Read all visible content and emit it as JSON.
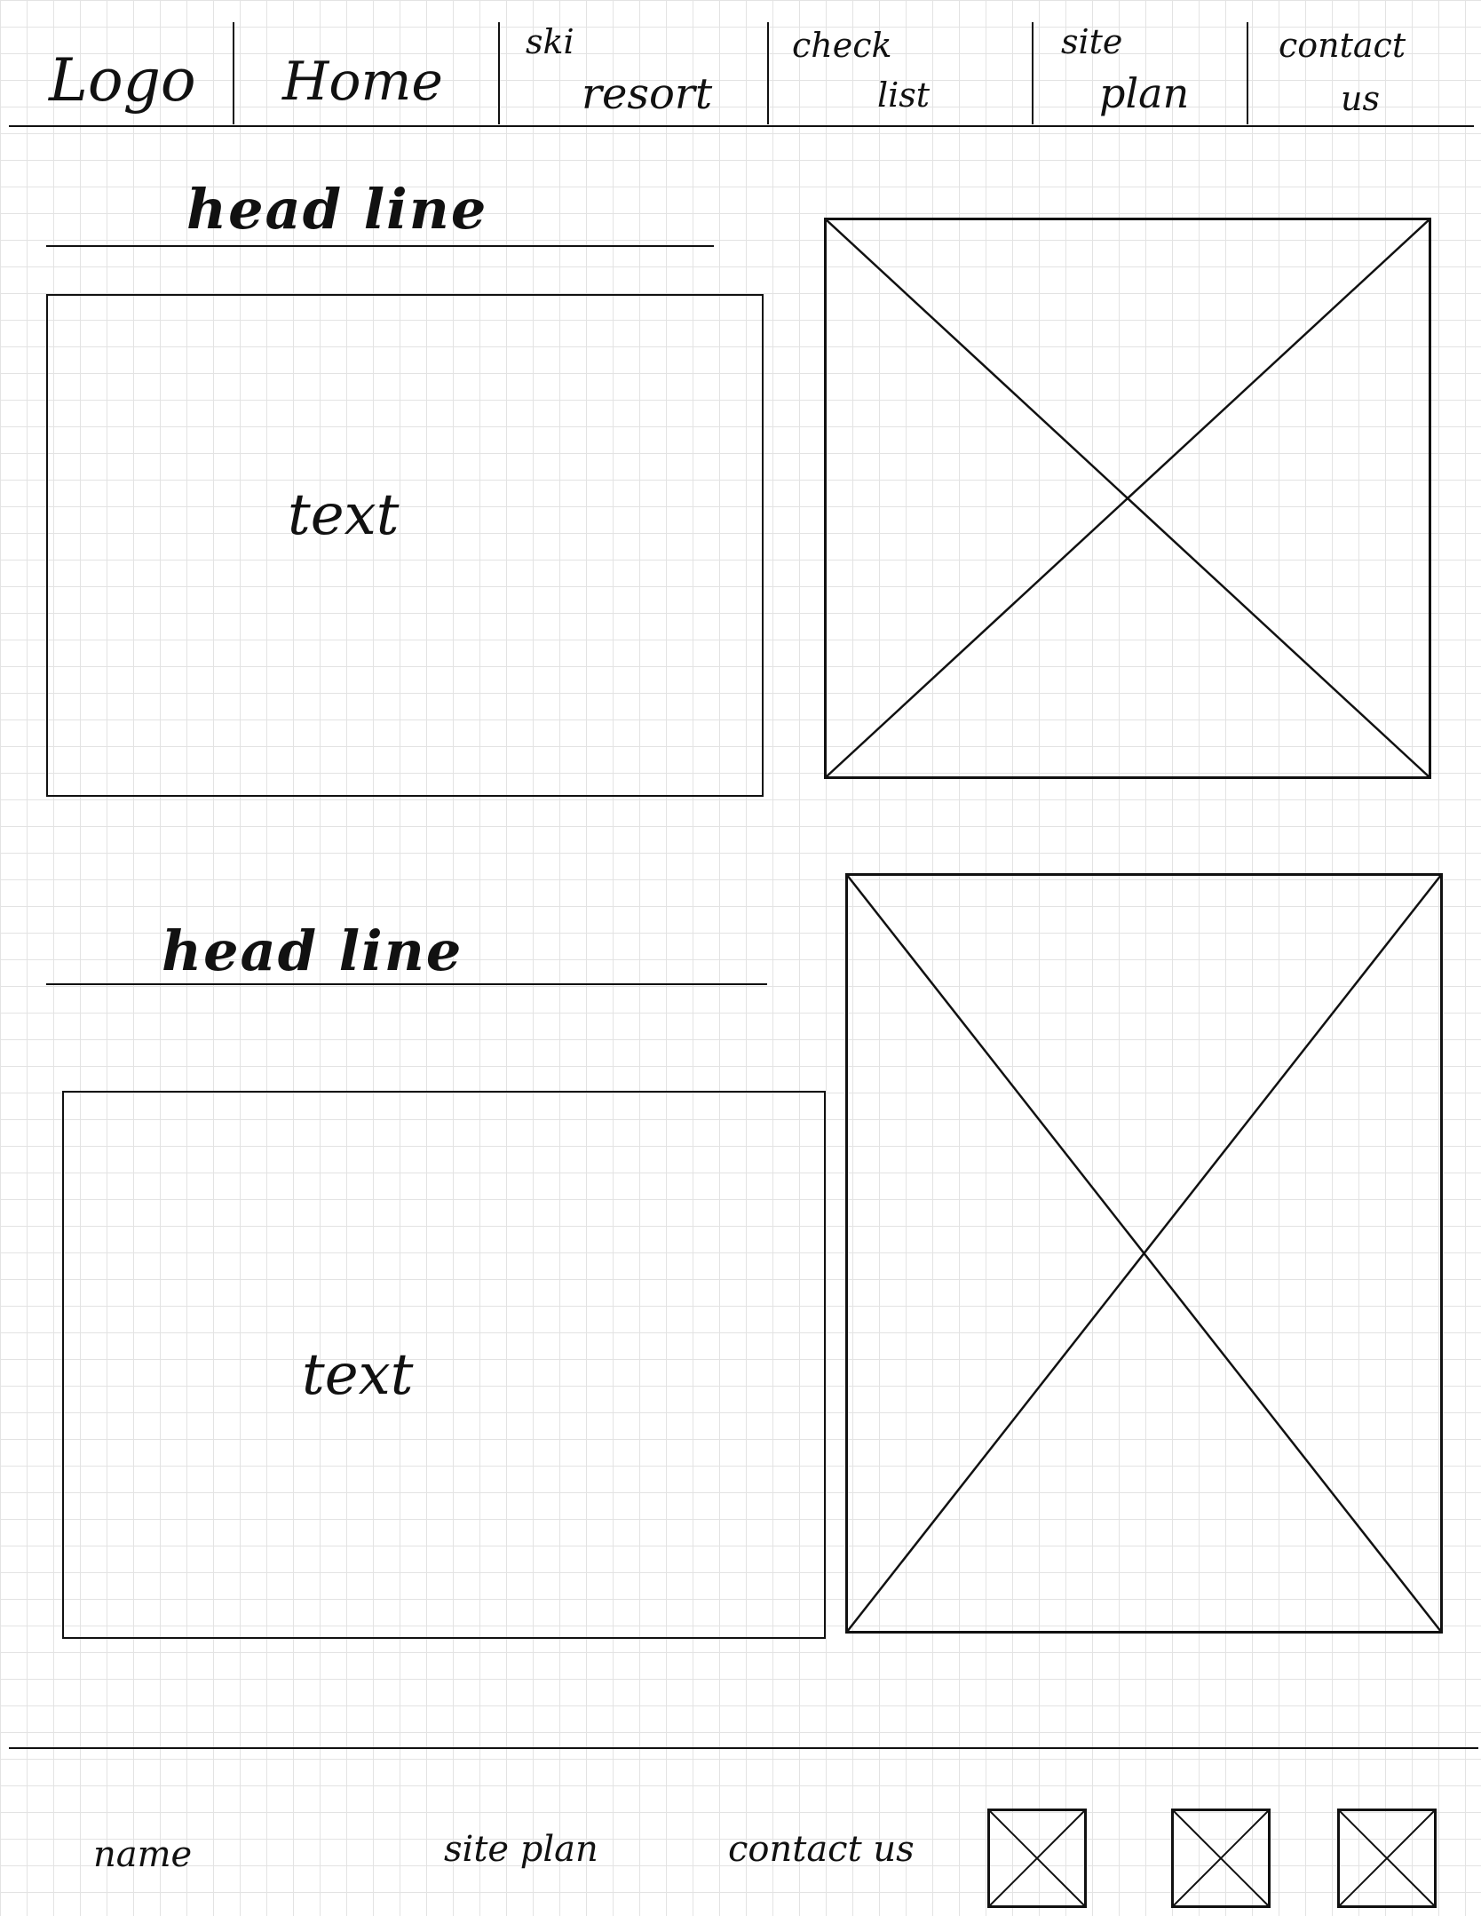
{
  "header": {
    "logo": "Logo",
    "nav": [
      {
        "line1": "Home",
        "line2": ""
      },
      {
        "line1": "ski",
        "line2": "resort"
      },
      {
        "line1": "check",
        "line2": "list"
      },
      {
        "line1": "site",
        "line2": "plan"
      },
      {
        "line1": "contact",
        "line2": "us"
      }
    ]
  },
  "sections": [
    {
      "headline": "head  line",
      "text": "text"
    },
    {
      "headline": "head  line",
      "text": "text"
    }
  ],
  "footer": {
    "name": "name",
    "site_plan": "site plan",
    "contact_us": "contact us"
  },
  "colors": {
    "ink": "#111111",
    "grid": "#e3e3e3",
    "paper": "#ffffff"
  }
}
